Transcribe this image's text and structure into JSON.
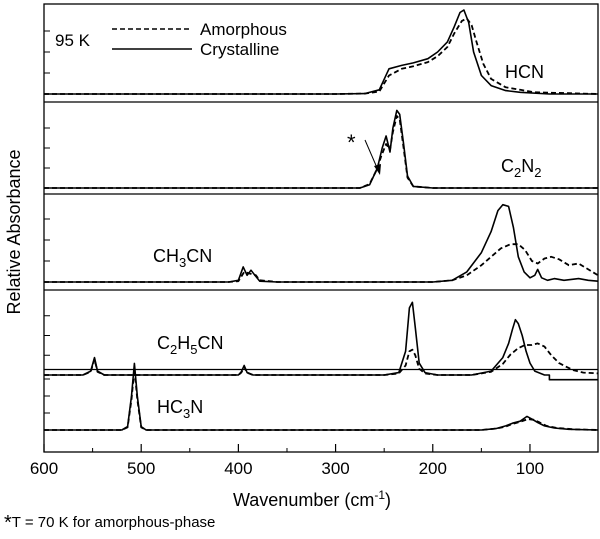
{
  "chart_data": {
    "type": "line",
    "xlabel": "Wavenumber (cm",
    "xlabel_sup": "-1",
    "xlabel_end": ")",
    "ylabel": "Relative Absorbance",
    "xlim": [
      600,
      30
    ],
    "x_ticks": [
      600,
      500,
      400,
      300,
      200,
      100
    ],
    "x_tick_labels": [
      "600",
      "500",
      "400",
      "300",
      "200",
      "100"
    ],
    "legend": {
      "placement": "top-left",
      "temperature": "95 K",
      "entries": [
        {
          "label": "Amorphous",
          "style": "dashed"
        },
        {
          "label": "Crystalline",
          "style": "solid"
        }
      ]
    },
    "annotation": "*",
    "footnote_star": "*",
    "footnote_text": "T = 70 K for amorphous-phase",
    "panels": [
      {
        "label": "HCN",
        "label_parts": [
          {
            "t": "HCN"
          }
        ],
        "label_x": 505,
        "label_y": 78,
        "baseline": 94,
        "top": 10,
        "crystalline": [
          [
            600,
            0
          ],
          [
            400,
            0
          ],
          [
            300,
            0
          ],
          [
            270,
            0.005
          ],
          [
            255,
            0.05
          ],
          [
            245,
            0.3
          ],
          [
            232,
            0.34
          ],
          [
            220,
            0.37
          ],
          [
            205,
            0.42
          ],
          [
            195,
            0.5
          ],
          [
            185,
            0.62
          ],
          [
            178,
            0.8
          ],
          [
            172,
            0.97
          ],
          [
            168,
            1.0
          ],
          [
            163,
            0.85
          ],
          [
            158,
            0.5
          ],
          [
            150,
            0.22
          ],
          [
            140,
            0.1
          ],
          [
            125,
            0.04
          ],
          [
            110,
            0.02
          ],
          [
            80,
            0.0
          ],
          [
            30,
            0.0
          ]
        ],
        "amorphous": [
          [
            600,
            0
          ],
          [
            400,
            0
          ],
          [
            300,
            0
          ],
          [
            270,
            0.005
          ],
          [
            255,
            0.03
          ],
          [
            245,
            0.22
          ],
          [
            232,
            0.3
          ],
          [
            220,
            0.33
          ],
          [
            205,
            0.38
          ],
          [
            195,
            0.45
          ],
          [
            185,
            0.56
          ],
          [
            178,
            0.72
          ],
          [
            170,
            0.87
          ],
          [
            165,
            0.9
          ],
          [
            160,
            0.82
          ],
          [
            155,
            0.62
          ],
          [
            148,
            0.36
          ],
          [
            140,
            0.18
          ],
          [
            125,
            0.08
          ],
          [
            110,
            0.05
          ],
          [
            95,
            0.02
          ],
          [
            60,
            0.01
          ],
          [
            30,
            0.0
          ]
        ]
      },
      {
        "label": "C2N2",
        "label_parts": [
          {
            "t": "C"
          },
          {
            "t": "2",
            "sub": true
          },
          {
            "t": "N"
          },
          {
            "t": "2",
            "sub": true
          }
        ],
        "label_x": 501,
        "label_y": 172,
        "baseline": 188,
        "top": 108,
        "crystalline": [
          [
            600,
            0
          ],
          [
            300,
            0
          ],
          [
            275,
            0.0
          ],
          [
            265,
            0.04
          ],
          [
            257,
            0.25
          ],
          [
            252,
            0.5
          ],
          [
            248,
            0.65
          ],
          [
            244,
            0.45
          ],
          [
            241,
            0.75
          ],
          [
            237,
            0.97
          ],
          [
            234,
            0.92
          ],
          [
            230,
            0.55
          ],
          [
            226,
            0.15
          ],
          [
            220,
            0.02
          ],
          [
            200,
            0
          ],
          [
            30,
            0
          ]
        ],
        "amorphous": [
          [
            600,
            0
          ],
          [
            300,
            0
          ],
          [
            275,
            0.0
          ],
          [
            265,
            0.05
          ],
          [
            258,
            0.22
          ],
          [
            253,
            0.4
          ],
          [
            248,
            0.55
          ],
          [
            244,
            0.48
          ],
          [
            241,
            0.7
          ],
          [
            237,
            0.9
          ],
          [
            234,
            0.86
          ],
          [
            230,
            0.5
          ],
          [
            226,
            0.13
          ],
          [
            220,
            0.02
          ],
          [
            200,
            0
          ],
          [
            30,
            0
          ]
        ]
      },
      {
        "label": "CH3CN",
        "label_parts": [
          {
            "t": "CH"
          },
          {
            "t": "3",
            "sub": true
          },
          {
            "t": "CN"
          }
        ],
        "label_x": 153,
        "label_y": 262,
        "baseline": 282,
        "top": 198,
        "crystalline": [
          [
            600,
            0
          ],
          [
            410,
            0
          ],
          [
            400,
            0.02
          ],
          [
            395,
            0.18
          ],
          [
            391,
            0.08
          ],
          [
            387,
            0.14
          ],
          [
            383,
            0.08
          ],
          [
            378,
            0.01
          ],
          [
            360,
            0
          ],
          [
            300,
            0
          ],
          [
            200,
            0
          ],
          [
            180,
            0.02
          ],
          [
            165,
            0.12
          ],
          [
            150,
            0.35
          ],
          [
            140,
            0.6
          ],
          [
            133,
            0.85
          ],
          [
            128,
            0.92
          ],
          [
            122,
            0.9
          ],
          [
            117,
            0.65
          ],
          [
            112,
            0.3
          ],
          [
            106,
            0.12
          ],
          [
            100,
            0.05
          ],
          [
            95,
            0.08
          ],
          [
            92,
            0.15
          ],
          [
            88,
            0.05
          ],
          [
            82,
            0.02
          ],
          [
            75,
            0.04
          ],
          [
            65,
            0.02
          ],
          [
            50,
            0.04
          ],
          [
            40,
            0.02
          ],
          [
            30,
            0.01
          ]
        ],
        "amorphous": [
          [
            600,
            0
          ],
          [
            410,
            0
          ],
          [
            400,
            0.01
          ],
          [
            394,
            0.12
          ],
          [
            388,
            0.1
          ],
          [
            382,
            0.08
          ],
          [
            378,
            0.02
          ],
          [
            360,
            0
          ],
          [
            300,
            0
          ],
          [
            200,
            0
          ],
          [
            180,
            0.02
          ],
          [
            165,
            0.08
          ],
          [
            150,
            0.2
          ],
          [
            140,
            0.3
          ],
          [
            130,
            0.4
          ],
          [
            120,
            0.45
          ],
          [
            112,
            0.45
          ],
          [
            105,
            0.38
          ],
          [
            98,
            0.25
          ],
          [
            92,
            0.22
          ],
          [
            85,
            0.28
          ],
          [
            78,
            0.3
          ],
          [
            70,
            0.27
          ],
          [
            60,
            0.2
          ],
          [
            50,
            0.22
          ],
          [
            40,
            0.15
          ],
          [
            30,
            0.08
          ]
        ]
      },
      {
        "label": "C2H5CN",
        "label_parts": [
          {
            "t": "C"
          },
          {
            "t": "2",
            "sub": true
          },
          {
            "t": "H"
          },
          {
            "t": "5",
            "sub": true
          },
          {
            "t": "CN"
          }
        ],
        "label_x": 157,
        "label_y": 349,
        "baseline": 375,
        "top": 296,
        "crystalline": [
          [
            600,
            0
          ],
          [
            560,
            0
          ],
          [
            552,
            0.05
          ],
          [
            548,
            0.22
          ],
          [
            545,
            0.05
          ],
          [
            538,
            0
          ],
          [
            400,
            0
          ],
          [
            397,
            0.04
          ],
          [
            394,
            0.12
          ],
          [
            391,
            0.03
          ],
          [
            385,
            0
          ],
          [
            300,
            0
          ],
          [
            250,
            0
          ],
          [
            235,
            0.03
          ],
          [
            228,
            0.3
          ],
          [
            224,
            0.85
          ],
          [
            221,
            0.92
          ],
          [
            218,
            0.6
          ],
          [
            214,
            0.15
          ],
          [
            208,
            0.03
          ],
          [
            195,
            0
          ],
          [
            160,
            0.0
          ],
          [
            140,
            0.05
          ],
          [
            128,
            0.22
          ],
          [
            122,
            0.4
          ],
          [
            118,
            0.58
          ],
          [
            115,
            0.7
          ],
          [
            112,
            0.65
          ],
          [
            108,
            0.5
          ],
          [
            104,
            0.3
          ],
          [
            100,
            0.15
          ],
          [
            95,
            0.05
          ],
          [
            85,
            0.0
          ],
          [
            80,
            0.0
          ],
          [
            80,
            -0.06
          ],
          [
            30,
            -0.06
          ]
        ],
        "amorphous": [
          [
            600,
            0
          ],
          [
            560,
            0
          ],
          [
            552,
            0.04
          ],
          [
            548,
            0.2
          ],
          [
            545,
            0.04
          ],
          [
            538,
            0
          ],
          [
            400,
            0
          ],
          [
            397,
            0.03
          ],
          [
            394,
            0.1
          ],
          [
            391,
            0.03
          ],
          [
            385,
            0
          ],
          [
            300,
            0
          ],
          [
            250,
            0
          ],
          [
            235,
            0.02
          ],
          [
            228,
            0.12
          ],
          [
            224,
            0.3
          ],
          [
            221,
            0.32
          ],
          [
            218,
            0.25
          ],
          [
            214,
            0.08
          ],
          [
            208,
            0.02
          ],
          [
            195,
            0
          ],
          [
            160,
            0.0
          ],
          [
            140,
            0.04
          ],
          [
            128,
            0.14
          ],
          [
            120,
            0.26
          ],
          [
            112,
            0.34
          ],
          [
            105,
            0.38
          ],
          [
            98,
            0.38
          ],
          [
            92,
            0.4
          ],
          [
            85,
            0.36
          ],
          [
            78,
            0.25
          ],
          [
            70,
            0.15
          ],
          [
            62,
            0.1
          ],
          [
            55,
            0.06
          ],
          [
            45,
            0.03
          ],
          [
            30,
            0.02
          ]
        ]
      },
      {
        "label": "HC3N",
        "label_parts": [
          {
            "t": "HC"
          },
          {
            "t": "3",
            "sub": true
          },
          {
            "t": "N"
          }
        ],
        "label_x": 157,
        "label_y": 413,
        "baseline": 430,
        "top": 362,
        "crystalline": [
          [
            600,
            0
          ],
          [
            520,
            0
          ],
          [
            514,
            0.05
          ],
          [
            510,
            0.5
          ],
          [
            507,
            0.98
          ],
          [
            504,
            0.5
          ],
          [
            500,
            0.05
          ],
          [
            495,
            0
          ],
          [
            300,
            0
          ],
          [
            150,
            0
          ],
          [
            135,
            0.02
          ],
          [
            125,
            0.06
          ],
          [
            118,
            0.1
          ],
          [
            110,
            0.13
          ],
          [
            103,
            0.2
          ],
          [
            98,
            0.16
          ],
          [
            92,
            0.11
          ],
          [
            85,
            0.06
          ],
          [
            75,
            0.03
          ],
          [
            60,
            0.01
          ],
          [
            30,
            0.0
          ]
        ],
        "amorphous": [
          [
            600,
            0
          ],
          [
            520,
            0
          ],
          [
            514,
            0.04
          ],
          [
            510,
            0.45
          ],
          [
            507,
            0.9
          ],
          [
            504,
            0.45
          ],
          [
            500,
            0.04
          ],
          [
            495,
            0
          ],
          [
            300,
            0
          ],
          [
            150,
            0
          ],
          [
            135,
            0.02
          ],
          [
            125,
            0.05
          ],
          [
            118,
            0.09
          ],
          [
            110,
            0.12
          ],
          [
            102,
            0.16
          ],
          [
            96,
            0.15
          ],
          [
            90,
            0.11
          ],
          [
            83,
            0.06
          ],
          [
            72,
            0.03
          ],
          [
            55,
            0.01
          ],
          [
            30,
            0.0
          ]
        ]
      }
    ]
  }
}
